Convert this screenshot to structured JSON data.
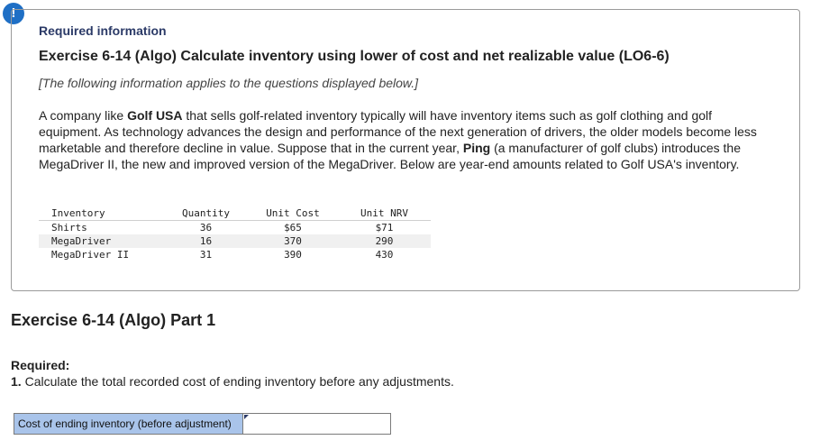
{
  "alert": {
    "icon": "exclamation-icon",
    "glyph": "!",
    "color": "#1f6fc5"
  },
  "header": {
    "required_info": "Required information",
    "exercise_title": "Exercise 6-14 (Algo) Calculate inventory using lower of cost and net realizable value (LO6-6)",
    "note": "[The following information applies to the questions displayed below.]"
  },
  "paragraph": {
    "p1": "A company like ",
    "b1": "Golf USA",
    "p2": " that sells golf-related inventory typically will have inventory items such as golf clothing and golf equipment. As technology advances the design and performance of the next generation of drivers, the older models become less marketable and therefore decline in value. Suppose that in the current year, ",
    "b2": "Ping",
    "p3": " (a manufacturer of golf clubs) introduces the MegaDriver II, the new and improved version of the MegaDriver. Below are year-end amounts related to Golf USA's inventory."
  },
  "table": {
    "headers": [
      "Inventory",
      "Quantity",
      "Unit Cost",
      "Unit NRV"
    ],
    "rows": [
      [
        "Shirts",
        "36",
        "$65",
        "$71"
      ],
      [
        "MegaDriver",
        "16",
        "370",
        "290"
      ],
      [
        "MegaDriver II",
        "31",
        "390",
        "430"
      ]
    ]
  },
  "part": {
    "title": "Exercise 6-14 (Algo) Part 1",
    "required_label": "Required:",
    "question_number": "1.",
    "question_text": " Calculate the total recorded cost of ending inventory before any adjustments."
  },
  "answer": {
    "label": "Cost of ending inventory (before adjustment)",
    "value": ""
  }
}
